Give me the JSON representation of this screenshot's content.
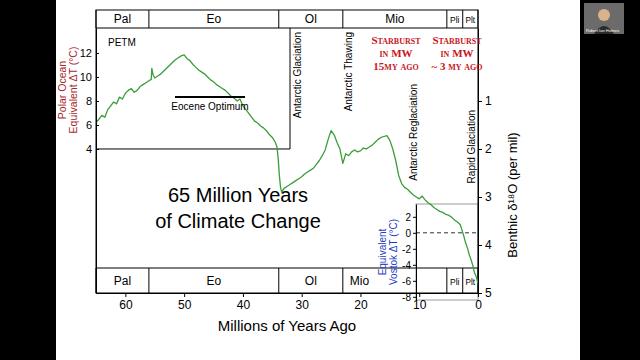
{
  "chart_data": [
    {
      "type": "line",
      "title": [
        "65 Million Years",
        "of Climate Change"
      ],
      "xlabel": "Millions of Years Ago",
      "ylabel": [
        "Polar Ocean",
        "Equivalent ΔT (°C)"
      ],
      "y2label": "Benthic δ¹⁸O (per mil)",
      "x": [
        65,
        64.5,
        64,
        63.5,
        63,
        62.5,
        62,
        61.5,
        61,
        60.5,
        60,
        59.5,
        59,
        58.5,
        58,
        57.5,
        57,
        56.5,
        56,
        55.6,
        55.5,
        55.3,
        55,
        54.5,
        54,
        53.5,
        53,
        52.5,
        52,
        51.5,
        51,
        50.5,
        50,
        49.5,
        49,
        48.5,
        48,
        47.5,
        47,
        46.5,
        46,
        45.5,
        45,
        44.5,
        44,
        43.5,
        43,
        42.5,
        42,
        41.5,
        41,
        40.5,
        40,
        39.5,
        39,
        38.5,
        38,
        37.5,
        37,
        36.5,
        36,
        35.5,
        35,
        34.5,
        34.2,
        34,
        33.8,
        33.6,
        33.4,
        33,
        32.5,
        32,
        31.5,
        31,
        30.5,
        30,
        29.5,
        29,
        28.5,
        28,
        27.5,
        27,
        26.5,
        26,
        25.5,
        25,
        24.5,
        24,
        23.5,
        23,
        22.5,
        22,
        21.5,
        21,
        20.5,
        20,
        19.5,
        19,
        18.5,
        18,
        17.5,
        17,
        16.5,
        16,
        15.5,
        15,
        14.5,
        14,
        13.5,
        13,
        12.5,
        12,
        11.5,
        11,
        10.5,
        10,
        9.5,
        9,
        8.5,
        8,
        7.5,
        7,
        6.5,
        6,
        5.5,
        5,
        4.5,
        4,
        3.5,
        3,
        2.7,
        2.4,
        2.1,
        1.8,
        1.5,
        1.2,
        0.9,
        0.6,
        0.3,
        0
      ],
      "series": [
        {
          "color": "#3a9d3a",
          "axis": "y2",
          "values": [
            1.45,
            1.38,
            1.3,
            1.34,
            1.18,
            1.1,
            1.02,
            1.06,
            0.92,
            0.96,
            0.84,
            0.78,
            0.74,
            0.82,
            0.78,
            0.7,
            0.66,
            0.62,
            0.58,
            0.55,
            0.32,
            0.45,
            0.52,
            0.48,
            0.44,
            0.38,
            0.32,
            0.26,
            0.2,
            0.14,
            0.1,
            0.06,
            0.04,
            0.12,
            0.16,
            0.24,
            0.3,
            0.36,
            0.4,
            0.44,
            0.5,
            0.56,
            0.6,
            0.66,
            0.7,
            0.74,
            0.78,
            0.84,
            0.9,
            0.94,
            1.0,
            0.96,
            1.1,
            1.18,
            1.26,
            1.34,
            1.42,
            1.46,
            1.52,
            1.56,
            1.62,
            1.7,
            1.76,
            1.86,
            1.96,
            2.2,
            2.55,
            2.8,
            2.9,
            2.82,
            2.78,
            2.74,
            2.7,
            2.66,
            2.62,
            2.58,
            2.52,
            2.48,
            2.44,
            2.4,
            2.32,
            2.24,
            2.14,
            2.02,
            1.8,
            1.62,
            1.7,
            1.86,
            2.0,
            2.3,
            2.1,
            2.14,
            2.06,
            2.02,
            2.06,
            2.04,
            1.98,
            2.0,
            1.96,
            1.92,
            1.86,
            1.8,
            1.76,
            1.74,
            1.72,
            1.82,
            2.0,
            2.24,
            2.55,
            2.72,
            2.8,
            2.84,
            2.9,
            2.96,
            3.0,
            3.04,
            2.98,
            3.06,
            3.12,
            3.16,
            3.22,
            3.26,
            3.3,
            3.32,
            3.36,
            3.38,
            3.42,
            3.48,
            3.52,
            3.58,
            3.7,
            3.82,
            3.96,
            4.06,
            4.2,
            4.3,
            4.42,
            4.58,
            4.66,
            4.8
          ]
        }
      ],
      "xlim": [
        65,
        0
      ],
      "xticks": [
        60,
        50,
        40,
        30,
        20,
        10,
        0
      ],
      "ylim": [
        -8,
        14.08
      ],
      "yticks": [
        4,
        6,
        8,
        10,
        12
      ],
      "y2lim": [
        5,
        -0.52
      ],
      "y2ticks": [
        1,
        2,
        3,
        4,
        5
      ],
      "epochs": [
        "Pal",
        "Eo",
        "Ol",
        "Mio",
        "Pli",
        "Plt"
      ],
      "epoch_bounds": [
        65,
        56,
        33.9,
        23,
        5.3,
        2.6,
        0
      ],
      "annotations": [
        "PETM",
        "Eocene Optimum",
        "Antarctic Glaciation",
        "Antarctic Thawing",
        "Antarctic Reglaciation",
        "Rapid Glaciation"
      ],
      "starbursts": [
        [
          "Starburst",
          "in MW",
          "15my ago"
        ],
        [
          "Starburst",
          "in MW",
          "~ 3 my ago"
        ]
      ]
    },
    {
      "type": "line",
      "ylabel": [
        "Equivalent",
        "Vostok ΔT (°C)"
      ],
      "ylim": [
        -8.4,
        3.6
      ],
      "yticks": [
        2,
        0,
        -2,
        -4,
        -6,
        -8
      ]
    }
  ],
  "speaker": "Robert Ian Holmes"
}
